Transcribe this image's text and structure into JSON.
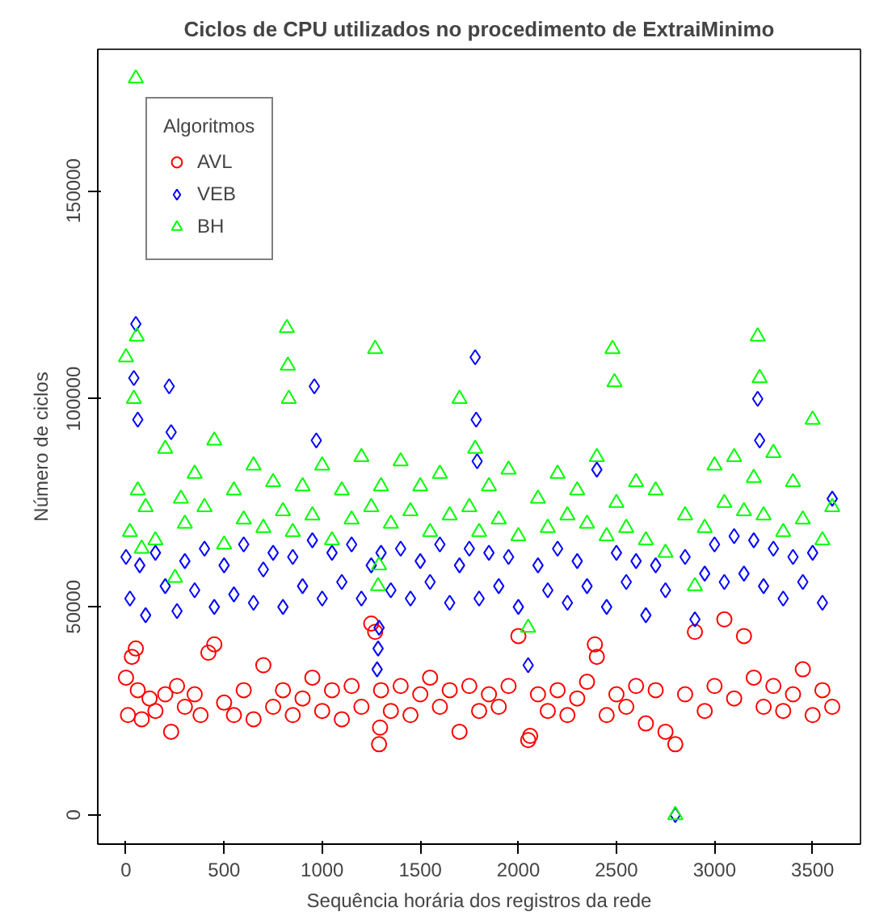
{
  "chart_data": {
    "type": "scatter",
    "title": "Ciclos de CPU utilizados no procedimento de ExtraiMinimo",
    "xlabel": "Sequência horária dos registros da rede",
    "ylabel": "Número de ciclos",
    "legend_title": "Algoritmos",
    "xlim": [
      -144,
      3744
    ],
    "ylim": [
      -7000,
      184000
    ],
    "xticks": [
      0,
      500,
      1000,
      1500,
      2000,
      2500,
      3000,
      3500
    ],
    "yticks": [
      0,
      50000,
      100000,
      150000
    ],
    "grid": false,
    "legend": "top left",
    "series": [
      {
        "name": "AVL",
        "color": "#ff0000",
        "marker": "circle",
        "x": [
          0,
          10,
          30,
          50,
          60,
          80,
          120,
          150,
          200,
          230,
          260,
          300,
          350,
          380,
          420,
          450,
          500,
          550,
          600,
          650,
          700,
          750,
          800,
          850,
          900,
          950,
          1000,
          1050,
          1100,
          1150,
          1200,
          1250,
          1270,
          1290,
          1295,
          1300,
          1350,
          1400,
          1450,
          1500,
          1550,
          1600,
          1650,
          1700,
          1750,
          1800,
          1850,
          1900,
          1950,
          2000,
          2050,
          2060,
          2100,
          2150,
          2200,
          2250,
          2300,
          2350,
          2390,
          2400,
          2450,
          2500,
          2550,
          2600,
          2650,
          2700,
          2750,
          2800,
          2850,
          2900,
          2950,
          3000,
          3050,
          3100,
          3150,
          3200,
          3250,
          3300,
          3350,
          3400,
          3450,
          3500,
          3550,
          3600
        ],
        "values": [
          33000,
          24000,
          38000,
          40000,
          30000,
          23000,
          28000,
          25000,
          29000,
          20000,
          31000,
          26000,
          29000,
          24000,
          39000,
          41000,
          27000,
          24000,
          30000,
          23000,
          36000,
          26000,
          30000,
          24000,
          28000,
          33000,
          25000,
          30000,
          23000,
          31000,
          26000,
          46000,
          44000,
          17000,
          21000,
          30000,
          25000,
          31000,
          24000,
          29000,
          33000,
          26000,
          30000,
          20000,
          31000,
          25000,
          29000,
          26000,
          31000,
          43000,
          18000,
          19000,
          29000,
          25000,
          30000,
          24000,
          28000,
          32000,
          41000,
          38000,
          24000,
          29000,
          26000,
          31000,
          22000,
          30000,
          20000,
          17000,
          29000,
          44000,
          25000,
          31000,
          47000,
          28000,
          43000,
          33000,
          26000,
          31000,
          25000,
          29000,
          35000,
          24000,
          30000,
          26000
        ]
      },
      {
        "name": "VEB",
        "color": "#0000ff",
        "marker": "diamond",
        "x": [
          0,
          20,
          40,
          50,
          60,
          70,
          100,
          150,
          200,
          220,
          230,
          260,
          300,
          350,
          400,
          450,
          500,
          550,
          600,
          650,
          700,
          750,
          800,
          850,
          900,
          950,
          960,
          970,
          1000,
          1050,
          1100,
          1150,
          1200,
          1250,
          1280,
          1285,
          1290,
          1300,
          1350,
          1400,
          1450,
          1500,
          1550,
          1600,
          1650,
          1700,
          1750,
          1780,
          1785,
          1790,
          1800,
          1850,
          1900,
          1950,
          2000,
          2050,
          2100,
          2150,
          2200,
          2250,
          2300,
          2350,
          2400,
          2450,
          2500,
          2550,
          2600,
          2650,
          2700,
          2750,
          2800,
          2850,
          2900,
          2950,
          3000,
          3050,
          3100,
          3150,
          3200,
          3220,
          3230,
          3250,
          3300,
          3350,
          3400,
          3450,
          3500,
          3550,
          3600
        ],
        "values": [
          62000,
          52000,
          105000,
          118000,
          95000,
          60000,
          48000,
          63000,
          55000,
          103000,
          92000,
          49000,
          61000,
          54000,
          64000,
          50000,
          60000,
          53000,
          65000,
          51000,
          59000,
          63000,
          50000,
          62000,
          55000,
          66000,
          103000,
          90000,
          52000,
          63000,
          56000,
          65000,
          52000,
          60000,
          35000,
          40000,
          45000,
          63000,
          54000,
          64000,
          52000,
          61000,
          56000,
          65000,
          51000,
          60000,
          64000,
          110000,
          95000,
          85000,
          52000,
          63000,
          55000,
          62000,
          50000,
          36000,
          60000,
          54000,
          64000,
          51000,
          61000,
          55000,
          83000,
          50000,
          63000,
          56000,
          61000,
          48000,
          60000,
          54000,
          0,
          62000,
          47000,
          58000,
          65000,
          56000,
          67000,
          58000,
          66000,
          100000,
          90000,
          55000,
          64000,
          52000,
          62000,
          56000,
          63000,
          51000,
          76000
        ]
      },
      {
        "name": "BH",
        "color": "#00ff00",
        "marker": "triangle",
        "x": [
          0,
          20,
          40,
          50,
          55,
          60,
          80,
          100,
          150,
          200,
          250,
          280,
          300,
          350,
          400,
          450,
          500,
          550,
          600,
          650,
          700,
          750,
          800,
          820,
          825,
          830,
          850,
          900,
          950,
          1000,
          1050,
          1100,
          1150,
          1200,
          1250,
          1270,
          1285,
          1290,
          1300,
          1350,
          1400,
          1450,
          1500,
          1550,
          1600,
          1650,
          1700,
          1750,
          1780,
          1800,
          1850,
          1900,
          1950,
          2000,
          2050,
          2100,
          2150,
          2200,
          2250,
          2300,
          2350,
          2400,
          2450,
          2480,
          2490,
          2500,
          2550,
          2600,
          2650,
          2700,
          2750,
          2800,
          2850,
          2900,
          2950,
          3000,
          3050,
          3100,
          3150,
          3200,
          3220,
          3230,
          3250,
          3300,
          3350,
          3400,
          3450,
          3500,
          3550,
          3600
        ],
        "values": [
          110000,
          68000,
          100000,
          177000,
          115000,
          78000,
          64000,
          74000,
          66000,
          88000,
          57000,
          76000,
          70000,
          82000,
          74000,
          90000,
          65000,
          78000,
          71000,
          84000,
          69000,
          80000,
          73000,
          117000,
          108000,
          100000,
          68000,
          79000,
          72000,
          84000,
          66000,
          78000,
          71000,
          86000,
          74000,
          112000,
          55000,
          60000,
          79000,
          70000,
          85000,
          73000,
          79000,
          68000,
          82000,
          72000,
          100000,
          74000,
          88000,
          68000,
          79000,
          71000,
          83000,
          67000,
          45000,
          76000,
          69000,
          82000,
          72000,
          78000,
          70000,
          86000,
          67000,
          112000,
          104000,
          75000,
          69000,
          80000,
          66000,
          78000,
          63000,
          0,
          72000,
          55000,
          69000,
          84000,
          75000,
          86000,
          73000,
          81000,
          115000,
          105000,
          72000,
          87000,
          68000,
          80000,
          71000,
          95000,
          66000,
          74000
        ]
      }
    ]
  }
}
